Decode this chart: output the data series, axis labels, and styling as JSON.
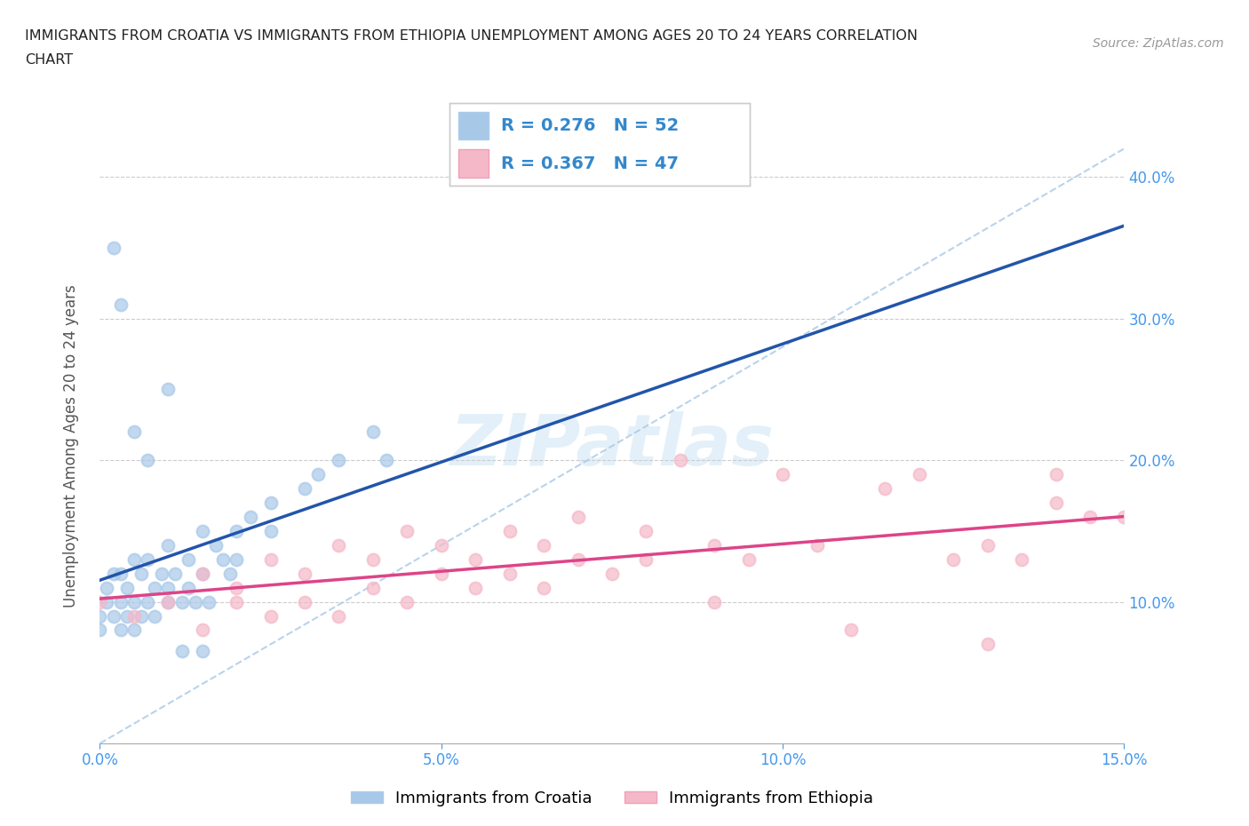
{
  "title_line1": "IMMIGRANTS FROM CROATIA VS IMMIGRANTS FROM ETHIOPIA UNEMPLOYMENT AMONG AGES 20 TO 24 YEARS CORRELATION",
  "title_line2": "CHART",
  "source_text": "Source: ZipAtlas.com",
  "ylabel": "Unemployment Among Ages 20 to 24 years",
  "xlim": [
    0.0,
    0.15
  ],
  "ylim": [
    0.0,
    0.42
  ],
  "xticks": [
    0.0,
    0.05,
    0.1,
    0.15
  ],
  "xticklabels": [
    "0.0%",
    "5.0%",
    "10.0%",
    "15.0%"
  ],
  "yticks": [
    0.1,
    0.2,
    0.3,
    0.4
  ],
  "yticklabels": [
    "10.0%",
    "20.0%",
    "30.0%",
    "40.0%"
  ],
  "legend_label1": "Immigrants from Croatia",
  "legend_label2": "Immigrants from Ethiopia",
  "r1": 0.276,
  "n1": 52,
  "r2": 0.367,
  "n2": 47,
  "color_croatia": "#a8c8e8",
  "color_ethiopia": "#f4b8c8",
  "trendline_color_croatia": "#2255aa",
  "trendline_color_ethiopia": "#dd4488",
  "diagonal_color": "#a8c8e8",
  "background_color": "#ffffff",
  "croatia_x": [
    0.0,
    0.0,
    0.001,
    0.001,
    0.002,
    0.002,
    0.003,
    0.003,
    0.003,
    0.004,
    0.004,
    0.005,
    0.005,
    0.005,
    0.006,
    0.006,
    0.007,
    0.007,
    0.008,
    0.008,
    0.009,
    0.01,
    0.01,
    0.01,
    0.011,
    0.012,
    0.013,
    0.013,
    0.014,
    0.015,
    0.015,
    0.016,
    0.017,
    0.018,
    0.019,
    0.02,
    0.02,
    0.022,
    0.025,
    0.025,
    0.03,
    0.032,
    0.035,
    0.04,
    0.042,
    0.002,
    0.003,
    0.005,
    0.007,
    0.01,
    0.012,
    0.015
  ],
  "croatia_y": [
    0.08,
    0.09,
    0.1,
    0.11,
    0.12,
    0.09,
    0.08,
    0.1,
    0.12,
    0.09,
    0.11,
    0.08,
    0.1,
    0.13,
    0.09,
    0.12,
    0.1,
    0.13,
    0.11,
    0.09,
    0.12,
    0.1,
    0.11,
    0.14,
    0.12,
    0.1,
    0.11,
    0.13,
    0.1,
    0.12,
    0.15,
    0.1,
    0.14,
    0.13,
    0.12,
    0.15,
    0.13,
    0.16,
    0.17,
    0.15,
    0.18,
    0.19,
    0.2,
    0.22,
    0.2,
    0.35,
    0.31,
    0.22,
    0.2,
    0.25,
    0.065,
    0.065
  ],
  "ethiopia_x": [
    0.0,
    0.005,
    0.01,
    0.015,
    0.015,
    0.02,
    0.02,
    0.025,
    0.025,
    0.03,
    0.03,
    0.035,
    0.035,
    0.04,
    0.04,
    0.045,
    0.045,
    0.05,
    0.05,
    0.055,
    0.055,
    0.06,
    0.06,
    0.065,
    0.065,
    0.07,
    0.07,
    0.075,
    0.08,
    0.08,
    0.085,
    0.09,
    0.09,
    0.095,
    0.1,
    0.105,
    0.11,
    0.115,
    0.12,
    0.125,
    0.13,
    0.13,
    0.135,
    0.14,
    0.14,
    0.145,
    0.15
  ],
  "ethiopia_y": [
    0.1,
    0.09,
    0.1,
    0.08,
    0.12,
    0.1,
    0.11,
    0.09,
    0.13,
    0.1,
    0.12,
    0.09,
    0.14,
    0.11,
    0.13,
    0.1,
    0.15,
    0.12,
    0.14,
    0.11,
    0.13,
    0.12,
    0.15,
    0.11,
    0.14,
    0.13,
    0.16,
    0.12,
    0.13,
    0.15,
    0.2,
    0.1,
    0.14,
    0.13,
    0.19,
    0.14,
    0.08,
    0.18,
    0.19,
    0.13,
    0.07,
    0.14,
    0.13,
    0.17,
    0.19,
    0.16,
    0.16
  ]
}
